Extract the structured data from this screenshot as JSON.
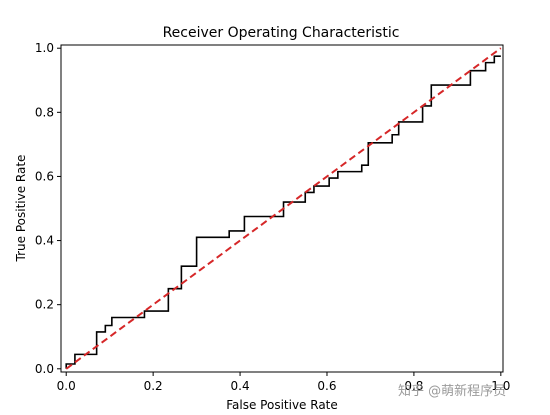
{
  "chart_data": {
    "type": "line",
    "title": "Receiver Operating Characteristic",
    "xlabel": "False Positive Rate",
    "ylabel": "True Positive Rate",
    "xlim": [
      -0.012,
      1.005
    ],
    "ylim": [
      -0.01,
      1.01
    ],
    "xticks": [
      0.0,
      0.2,
      0.4,
      0.6,
      0.8,
      1.0
    ],
    "yticks": [
      0.0,
      0.2,
      0.4,
      0.6,
      0.8,
      1.0
    ],
    "xtick_labels": [
      "0.0",
      "0.2",
      "0.4",
      "0.6",
      "0.8",
      "1.0"
    ],
    "ytick_labels": [
      "0.0",
      "0.2",
      "0.4",
      "0.6",
      "0.8",
      "1.0"
    ],
    "grid": false,
    "series": [
      {
        "style": "solid",
        "color": "#000000",
        "x": [
          0.0,
          0.0,
          0.02,
          0.02,
          0.07,
          0.07,
          0.09,
          0.09,
          0.105,
          0.105,
          0.18,
          0.18,
          0.235,
          0.235,
          0.265,
          0.265,
          0.3,
          0.3,
          0.375,
          0.375,
          0.41,
          0.41,
          0.5,
          0.5,
          0.55,
          0.55,
          0.57,
          0.57,
          0.605,
          0.605,
          0.625,
          0.625,
          0.68,
          0.68,
          0.695,
          0.695,
          0.75,
          0.75,
          0.765,
          0.765,
          0.82,
          0.82,
          0.84,
          0.84,
          0.93,
          0.93,
          0.965,
          0.965,
          0.985,
          0.985,
          1.0
        ],
        "y": [
          0.0,
          0.015,
          0.015,
          0.045,
          0.045,
          0.115,
          0.115,
          0.135,
          0.135,
          0.16,
          0.16,
          0.18,
          0.18,
          0.25,
          0.25,
          0.32,
          0.32,
          0.41,
          0.41,
          0.43,
          0.43,
          0.475,
          0.475,
          0.52,
          0.52,
          0.55,
          0.55,
          0.57,
          0.57,
          0.595,
          0.595,
          0.615,
          0.615,
          0.635,
          0.635,
          0.705,
          0.705,
          0.73,
          0.73,
          0.77,
          0.77,
          0.82,
          0.82,
          0.885,
          0.885,
          0.93,
          0.93,
          0.955,
          0.955,
          0.975,
          0.975
        ]
      },
      {
        "style": "dashed",
        "color": "#d62728",
        "x": [
          0.0,
          1.0
        ],
        "y": [
          0.0,
          1.0
        ]
      }
    ]
  },
  "watermark": "知乎 @萌新程序员"
}
